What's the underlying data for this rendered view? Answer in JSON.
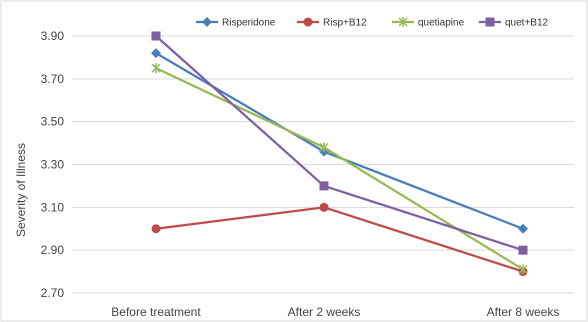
{
  "chart_data": {
    "type": "line",
    "title": "",
    "xlabel": "",
    "ylabel": "Severity of Illness",
    "categories": [
      "Before treatment",
      "After 2 weeks",
      "After 8 weeks"
    ],
    "ylim": [
      2.7,
      3.9
    ],
    "yticks": [
      "3.90",
      "3.70",
      "3.50",
      "3.30",
      "3.10",
      "2.90",
      "2.70"
    ],
    "grid": true,
    "legend_position": "top-right",
    "series": [
      {
        "name": "Risperidone",
        "values": [
          3.82,
          3.36,
          3.0
        ],
        "color": "#4a7ebb",
        "marker": "diamond"
      },
      {
        "name": "Risp+B12",
        "values": [
          3.0,
          3.1,
          2.8
        ],
        "color": "#be4b48",
        "marker": "circle"
      },
      {
        "name": "quetiapine",
        "values": [
          3.75,
          3.38,
          2.81
        ],
        "color": "#98b954",
        "marker": "star"
      },
      {
        "name": "quet+B12",
        "values": [
          3.9,
          3.2,
          2.9
        ],
        "color": "#7d60a0",
        "marker": "square"
      }
    ]
  }
}
